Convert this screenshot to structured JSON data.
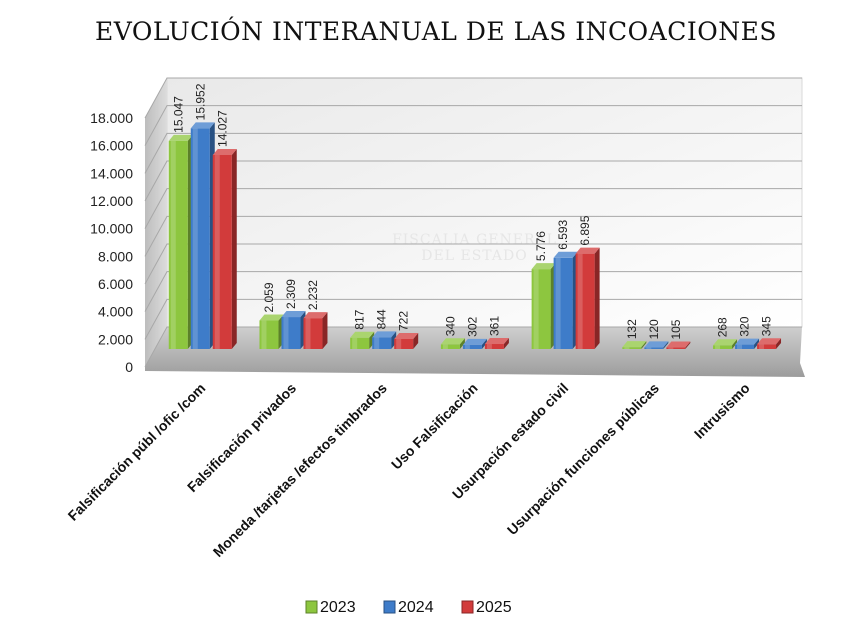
{
  "chart_data": {
    "type": "bar",
    "title": "EVOLUCIÓN INTERANUAL DE LAS INCOACIONES",
    "xlabel": "",
    "ylabel": "",
    "ylim": [
      0,
      18000
    ],
    "yticks": [
      0,
      2000,
      4000,
      6000,
      8000,
      10000,
      12000,
      14000,
      16000,
      18000
    ],
    "ytick_labels": [
      "0",
      "2.000",
      "4.000",
      "6.000",
      "8.000",
      "10.000",
      "12.000",
      "14.000",
      "16.000",
      "18.000"
    ],
    "grid": true,
    "legend_position": "bottom",
    "categories": [
      "Falsificación públ /ofic /com",
      "Falsificación privados",
      "Moneda /tarjetas /efectos timbrados",
      "Uso Falsificación",
      "Usurpación estado civil",
      "Usurpación funciones públicas",
      "Intrusismo"
    ],
    "series": [
      {
        "name": "2023",
        "color": "#8dc63f",
        "values": [
          15047,
          2059,
          817,
          340,
          5776,
          132,
          268
        ],
        "labels": [
          "15.047",
          "2.059",
          "817",
          "340",
          "5.776",
          "132",
          "268"
        ]
      },
      {
        "name": "2024",
        "color": "#3e7cc9",
        "values": [
          15952,
          2309,
          844,
          302,
          6593,
          120,
          320
        ],
        "labels": [
          "15.952",
          "2.309",
          "844",
          "302",
          "6.593",
          "120",
          "320"
        ]
      },
      {
        "name": "2025",
        "color": "#d23b3b",
        "values": [
          14027,
          2232,
          722,
          361,
          6895,
          105,
          345
        ],
        "labels": [
          "14.027",
          "2.232",
          "722",
          "361",
          "6.895",
          "105",
          "345"
        ]
      }
    ]
  },
  "watermark": {
    "line1": "FISCALIA GENERAL",
    "line2": "DEL ESTADO"
  }
}
